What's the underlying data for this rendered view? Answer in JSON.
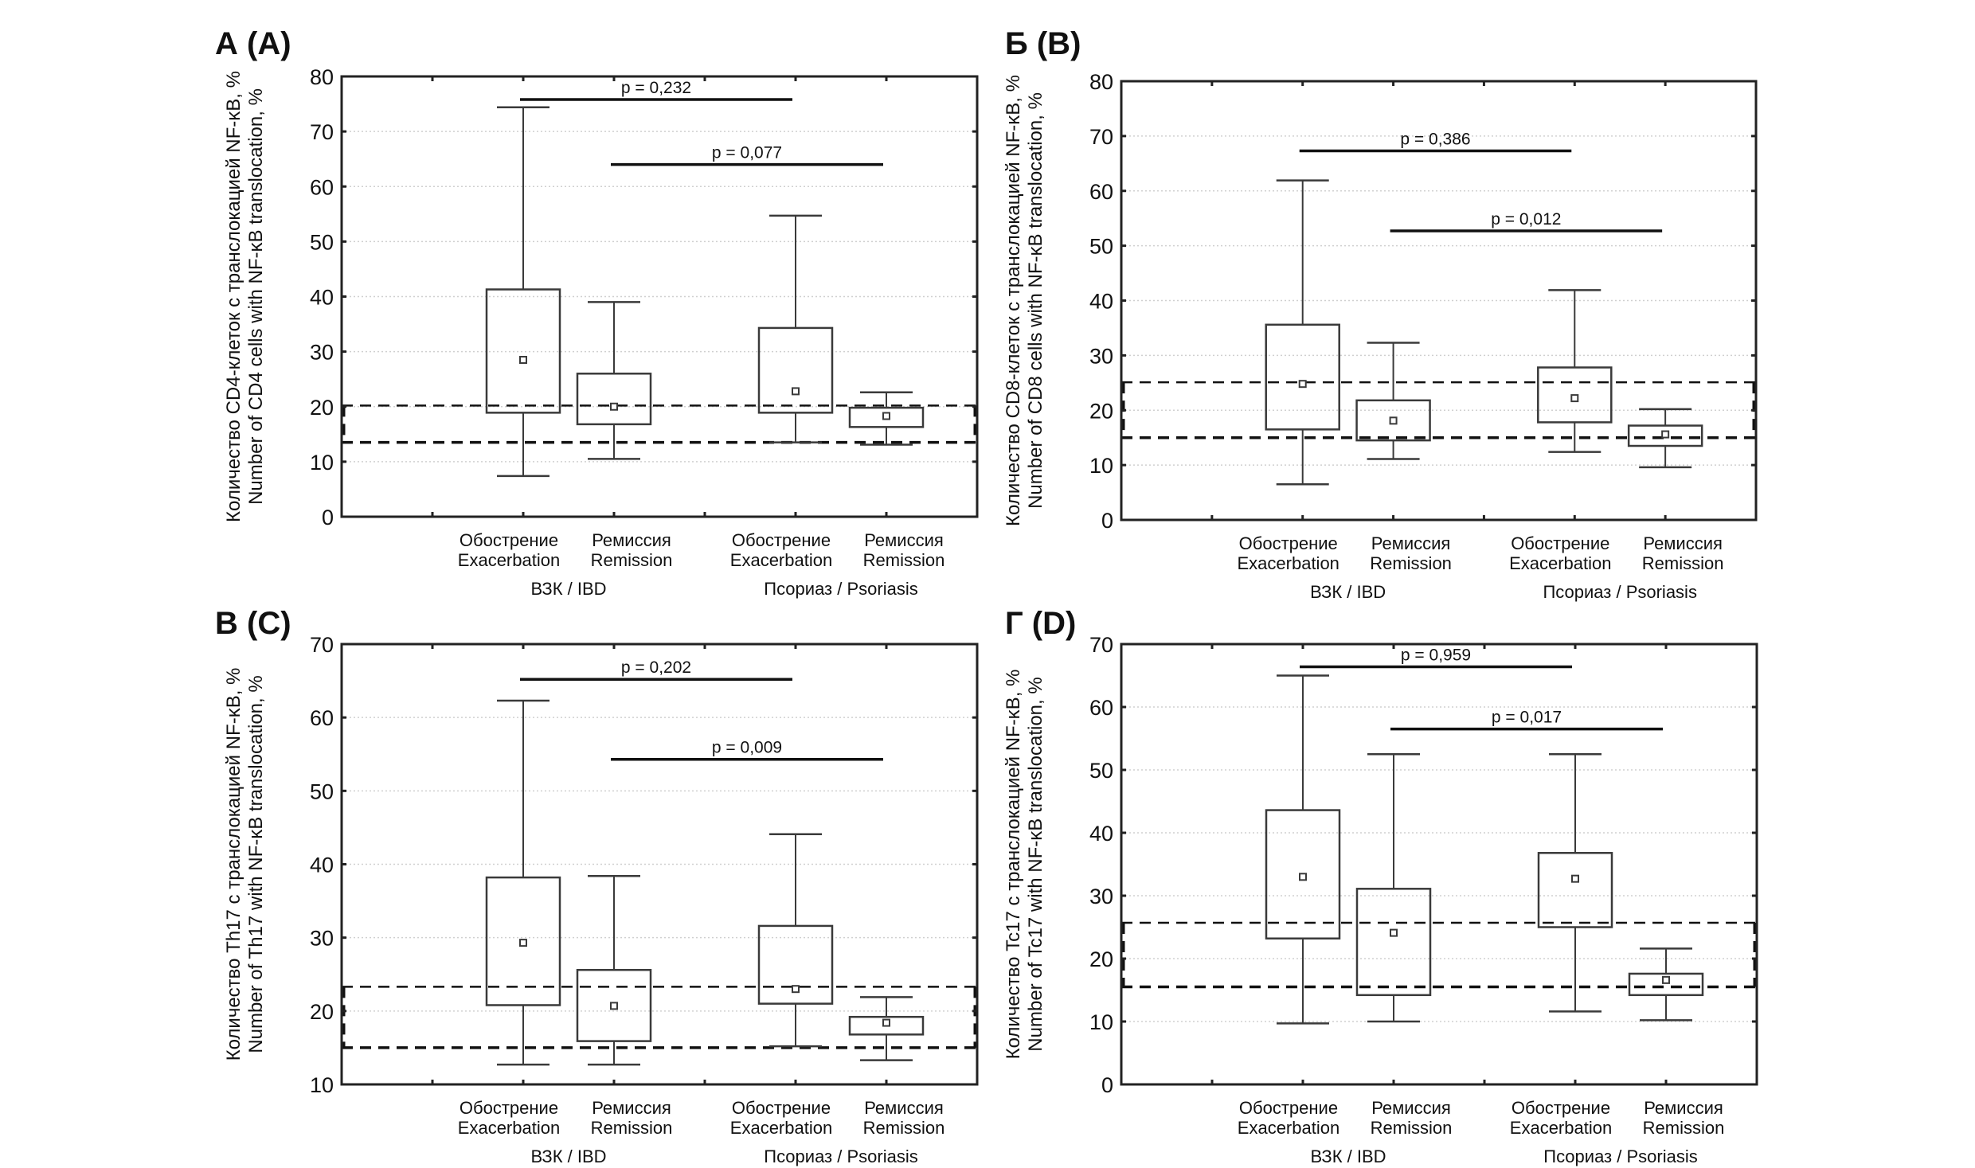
{
  "figure": {
    "category_labels": [
      {
        "ru": "Обострение",
        "en": "Exacerbation"
      },
      {
        "ru": "Ремиссия",
        "en": "Remission"
      },
      {
        "ru": "Обострение",
        "en": "Exacerbation"
      },
      {
        "ru": "Ремиссия",
        "en": "Remission"
      }
    ],
    "group_labels": [
      "ВЗК / IBD",
      "Псориаз / Psoriasis"
    ],
    "colors": {
      "box_stroke": "#3a3a3a",
      "axis": "#222222",
      "grid": "#d0d0d0",
      "pbar": "#111111",
      "reference": "#111111"
    }
  },
  "chart_data": [
    {
      "type": "box",
      "panel": "A (A)",
      "title": "А (А)",
      "ylabel_ru": "Количество CD4-клеток с транслокацией NF-κB, %",
      "ylabel_en": "Number of CD4 cells with NF-κB translocation, %",
      "ylim": [
        0,
        80
      ],
      "yticks": [
        0,
        10,
        20,
        30,
        40,
        50,
        60,
        70,
        80
      ],
      "grid": true,
      "categories": [
        "IBD Exacerbation",
        "IBD Remission",
        "Psoriasis Exacerbation",
        "Psoriasis Remission"
      ],
      "boxes": [
        {
          "min": 7.4,
          "q1": 18.9,
          "mean": 28.5,
          "q3": 41.3,
          "max": 74.4
        },
        {
          "min": 10.5,
          "q1": 16.8,
          "mean": 20.0,
          "q3": 26.0,
          "max": 39.0
        },
        {
          "min": 13.5,
          "q1": 18.9,
          "mean": 22.8,
          "q3": 34.3,
          "max": 54.7
        },
        {
          "min": 13.1,
          "q1": 16.3,
          "mean": 18.3,
          "q3": 19.8,
          "max": 22.6
        }
      ],
      "reference_range": [
        13.5,
        20.2
      ],
      "comparisons": [
        {
          "from": 0,
          "to": 2,
          "y": 75.8,
          "label": "p = 0,232"
        },
        {
          "from": 1,
          "to": 3,
          "y": 64.0,
          "label": "p = 0,077"
        }
      ]
    },
    {
      "type": "box",
      "panel": "Б (B)",
      "title": "Б (B)",
      "ylabel_ru": "Количество CD8-клеток с транслокацией NF-κB, %",
      "ylabel_en": "Number of CD8 cells with NF-κB translocation, %",
      "ylim": [
        0,
        80
      ],
      "yticks": [
        0,
        10,
        20,
        30,
        40,
        50,
        60,
        70,
        80
      ],
      "grid": true,
      "categories": [
        "IBD Exacerbation",
        "IBD Remission",
        "Psoriasis Exacerbation",
        "Psoriasis Remission"
      ],
      "boxes": [
        {
          "min": 6.5,
          "q1": 16.5,
          "mean": 24.8,
          "q3": 35.6,
          "max": 61.9
        },
        {
          "min": 11.1,
          "q1": 14.5,
          "mean": 18.1,
          "q3": 21.8,
          "max": 32.3
        },
        {
          "min": 12.4,
          "q1": 17.8,
          "mean": 22.2,
          "q3": 27.8,
          "max": 41.9
        },
        {
          "min": 9.6,
          "q1": 13.5,
          "mean": 15.6,
          "q3": 17.2,
          "max": 20.2
        }
      ],
      "reference_range": [
        15.0,
        25.1
      ],
      "comparisons": [
        {
          "from": 0,
          "to": 2,
          "y": 67.3,
          "label": "p = 0,386"
        },
        {
          "from": 1,
          "to": 3,
          "y": 52.7,
          "label": "p = 0,012"
        }
      ]
    },
    {
      "type": "box",
      "panel": "В (C)",
      "title": "В (C)",
      "ylabel_ru": "Количество Th17 с транслокацией NF-κB, %",
      "ylabel_en": "Number of Th17 with NF-κB translocation, %",
      "ylim": [
        10,
        70
      ],
      "yticks": [
        10,
        20,
        30,
        40,
        50,
        60,
        70
      ],
      "grid": true,
      "categories": [
        "IBD Exacerbation",
        "IBD Remission",
        "Psoriasis Exacerbation",
        "Psoriasis Remission"
      ],
      "boxes": [
        {
          "min": 12.7,
          "q1": 20.8,
          "mean": 29.3,
          "q3": 38.2,
          "max": 62.3
        },
        {
          "min": 12.7,
          "q1": 15.9,
          "mean": 20.7,
          "q3": 25.6,
          "max": 38.4
        },
        {
          "min": 15.2,
          "q1": 21.0,
          "mean": 23.0,
          "q3": 31.6,
          "max": 44.1
        },
        {
          "min": 13.3,
          "q1": 16.8,
          "mean": 18.4,
          "q3": 19.2,
          "max": 21.9
        }
      ],
      "reference_range": [
        15.0,
        23.3
      ],
      "comparisons": [
        {
          "from": 0,
          "to": 2,
          "y": 65.2,
          "label": "p = 0,202"
        },
        {
          "from": 1,
          "to": 3,
          "y": 54.3,
          "label": "p = 0,009"
        }
      ]
    },
    {
      "type": "box",
      "panel": "Г (D)",
      "title": "Г (D)",
      "ylabel_ru": "Количество Tc17 с транслокацией NF-κB, %",
      "ylabel_en": "Number of Tc17 with NF-κB translocation, %",
      "ylim": [
        0,
        70
      ],
      "yticks": [
        0,
        10,
        20,
        30,
        40,
        50,
        60,
        70
      ],
      "grid": true,
      "categories": [
        "IBD Exacerbation",
        "IBD Remission",
        "Psoriasis Exacerbation",
        "Psoriasis Remission"
      ],
      "boxes": [
        {
          "min": 9.7,
          "q1": 23.2,
          "mean": 33.0,
          "q3": 43.6,
          "max": 65.0
        },
        {
          "min": 10.0,
          "q1": 14.2,
          "mean": 24.1,
          "q3": 31.1,
          "max": 52.5
        },
        {
          "min": 11.6,
          "q1": 25.0,
          "mean": 32.7,
          "q3": 36.8,
          "max": 52.5
        },
        {
          "min": 10.2,
          "q1": 14.2,
          "mean": 16.6,
          "q3": 17.6,
          "max": 21.6
        }
      ],
      "reference_range": [
        15.5,
        25.7
      ],
      "comparisons": [
        {
          "from": 0,
          "to": 2,
          "y": 66.4,
          "label": "p = 0,959"
        },
        {
          "from": 1,
          "to": 3,
          "y": 56.5,
          "label": "p = 0,017"
        }
      ]
    }
  ]
}
